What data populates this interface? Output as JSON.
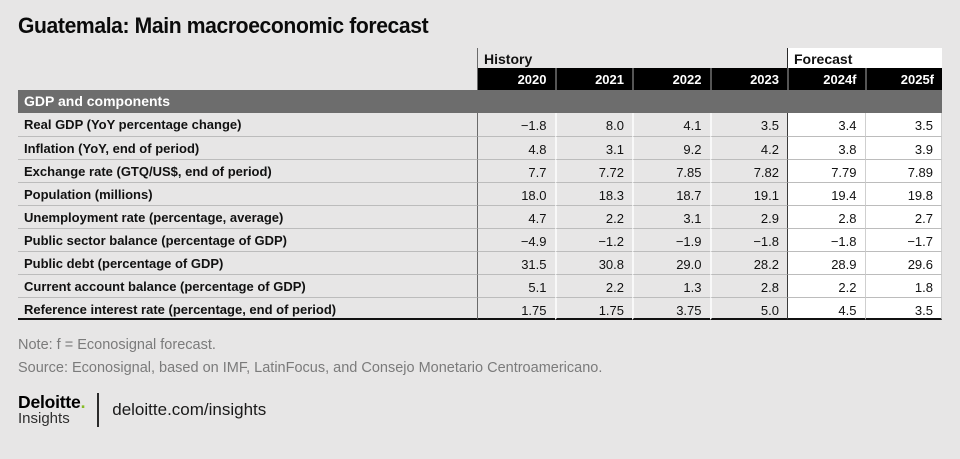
{
  "page": {
    "title": "Guatemala: Main macroeconomic forecast",
    "note": "Note: f = Econosignal forecast.",
    "source": "Source: Econosignal, based on IMF, LatinFocus, and Consejo Monetario Centroamericano."
  },
  "table": {
    "group_headers": [
      {
        "label": "History"
      },
      {
        "label": "Forecast"
      }
    ],
    "year_headers": [
      "2020",
      "2021",
      "2022",
      "2023",
      "2024f",
      "2025f"
    ],
    "section_header": "GDP and components",
    "rows": [
      {
        "label": "Real GDP (YoY percentage change)",
        "values": [
          "−1.8",
          "8.0",
          "4.1",
          "3.5",
          "3.4",
          "3.5"
        ]
      },
      {
        "label": "Inflation (YoY, end of period)",
        "values": [
          "4.8",
          "3.1",
          "9.2",
          "4.2",
          "3.8",
          "3.9"
        ]
      },
      {
        "label": "Exchange rate (GTQ/US$, end of period)",
        "values": [
          "7.7",
          "7.72",
          "7.85",
          "7.82",
          "7.79",
          "7.89"
        ]
      },
      {
        "label": "Population (millions)",
        "values": [
          "18.0",
          "18.3",
          "18.7",
          "19.1",
          "19.4",
          "19.8"
        ]
      },
      {
        "label": "Unemployment rate (percentage, average)",
        "values": [
          "4.7",
          "2.2",
          "3.1",
          "2.9",
          "2.8",
          "2.7"
        ]
      },
      {
        "label": "Public sector balance (percentage of GDP)",
        "values": [
          "−4.9",
          "−1.2",
          "−1.9",
          "−1.8",
          "−1.8",
          "−1.7"
        ]
      },
      {
        "label": "Public debt (percentage of GDP)",
        "values": [
          "31.5",
          "30.8",
          "29.0",
          "28.2",
          "28.9",
          "29.6"
        ]
      },
      {
        "label": "Current account balance (percentage of GDP)",
        "values": [
          "5.1",
          "2.2",
          "1.3",
          "2.8",
          "2.2",
          "1.8"
        ]
      },
      {
        "label": "Reference interest rate (percentage, end of period)",
        "values": [
          "1.75",
          "1.75",
          "3.75",
          "5.0",
          "4.5",
          "3.5"
        ]
      }
    ]
  },
  "footer": {
    "brand": "Deloitte",
    "brand_dot": ".",
    "brand_sub": "Insights",
    "url": "deloitte.com/insights"
  },
  "colors": {
    "page_bg": "#e7e6e6",
    "section_header_bg": "#6d6d6d",
    "year_header_bg": "#000000",
    "forecast_bg": "#ffffff",
    "note_text": "#7b7b7b",
    "deloitte_green": "#86bc25"
  },
  "chart_data": {
    "type": "table",
    "title": "Guatemala: Main macroeconomic forecast",
    "column_groups": [
      {
        "label": "History",
        "columns": [
          "2020",
          "2021",
          "2022",
          "2023"
        ]
      },
      {
        "label": "Forecast",
        "columns": [
          "2024f",
          "2025f"
        ]
      }
    ],
    "columns": [
      "2020",
      "2021",
      "2022",
      "2023",
      "2024f",
      "2025f"
    ],
    "section": "GDP and components",
    "rows": [
      {
        "label": "Real GDP (YoY percentage change)",
        "values": [
          -1.8,
          8.0,
          4.1,
          3.5,
          3.4,
          3.5
        ]
      },
      {
        "label": "Inflation (YoY, end of period)",
        "values": [
          4.8,
          3.1,
          9.2,
          4.2,
          3.8,
          3.9
        ]
      },
      {
        "label": "Exchange rate (GTQ/US$, end of period)",
        "values": [
          7.7,
          7.72,
          7.85,
          7.82,
          7.79,
          7.89
        ]
      },
      {
        "label": "Population (millions)",
        "values": [
          18.0,
          18.3,
          18.7,
          19.1,
          19.4,
          19.8
        ]
      },
      {
        "label": "Unemployment rate (percentage, average)",
        "values": [
          4.7,
          2.2,
          3.1,
          2.9,
          2.8,
          2.7
        ]
      },
      {
        "label": "Public sector balance (percentage of GDP)",
        "values": [
          -4.9,
          -1.2,
          -1.9,
          -1.8,
          -1.8,
          -1.7
        ]
      },
      {
        "label": "Public debt (percentage of GDP)",
        "values": [
          31.5,
          30.8,
          29.0,
          28.2,
          28.9,
          29.6
        ]
      },
      {
        "label": "Current account balance (percentage of GDP)",
        "values": [
          5.1,
          2.2,
          1.3,
          2.8,
          2.2,
          1.8
        ]
      },
      {
        "label": "Reference interest rate (percentage, end of period)",
        "values": [
          1.75,
          1.75,
          3.75,
          5.0,
          4.5,
          3.5
        ]
      }
    ],
    "note": "Note: f = Econosignal forecast.",
    "source": "Source: Econosignal, based on IMF, LatinFocus, and Consejo Monetario Centroamericano."
  }
}
